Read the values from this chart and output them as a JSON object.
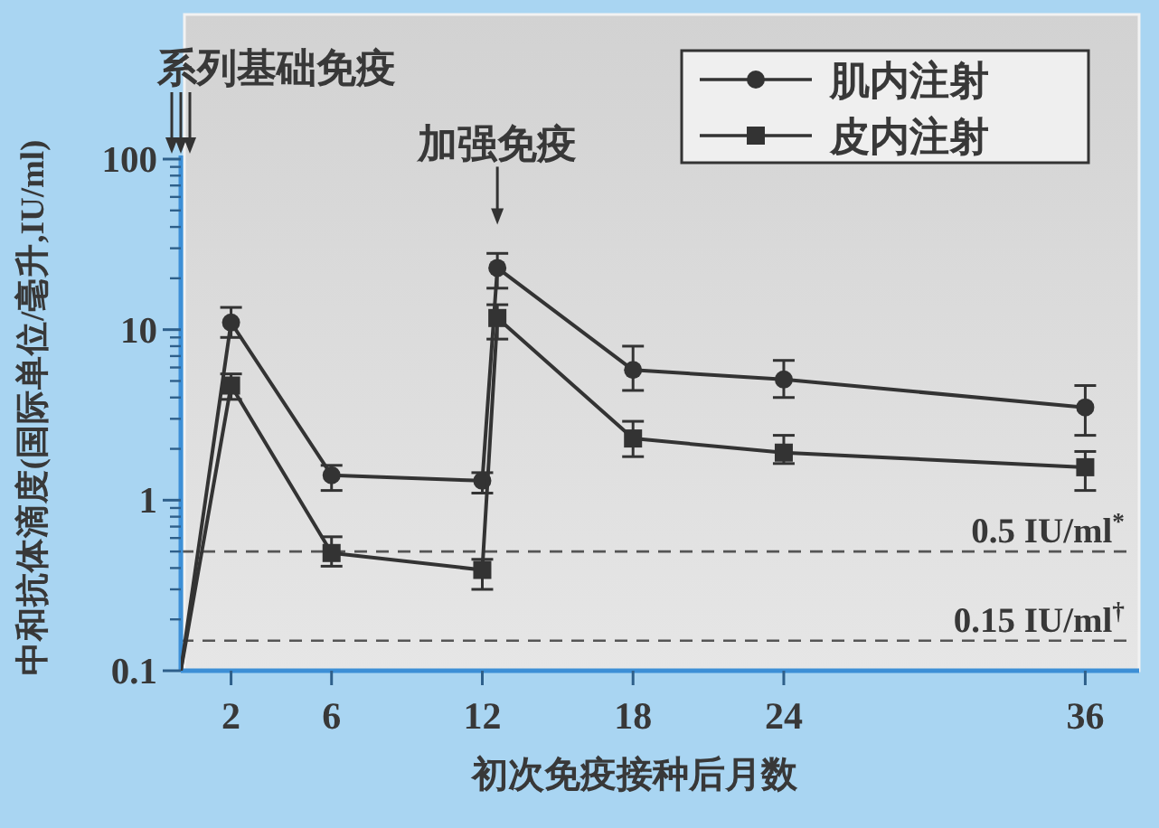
{
  "chart_data": {
    "type": "line",
    "xlabel": "初次免疫接种后月数",
    "ylabel": "中和抗体滴度(国际单位/毫升,IU/ml)",
    "x": [
      0,
      2,
      6,
      12,
      12.6,
      18,
      24,
      36
    ],
    "series": [
      {
        "name": "肌内注射",
        "color": "#333333",
        "marker": "circle",
        "values": [
          0.1,
          11,
          1.4,
          1.3,
          23,
          5.8,
          5.1,
          3.5
        ],
        "errors": [
          null,
          [
            9,
            13.5
          ],
          [
            1.14,
            1.6
          ],
          [
            1.1,
            1.45
          ],
          [
            17.5,
            28
          ],
          [
            4.4,
            8
          ],
          [
            4.0,
            6.6
          ],
          [
            2.4,
            4.7
          ]
        ]
      },
      {
        "name": "皮内注射",
        "color": "#333333",
        "marker": "square",
        "values": [
          0.1,
          4.7,
          0.49,
          0.39,
          11.7,
          2.3,
          1.9,
          1.56
        ],
        "errors": [
          null,
          [
            3.9,
            5.5
          ],
          [
            0.41,
            0.61
          ],
          [
            0.3,
            0.45
          ],
          [
            8.8,
            14
          ],
          [
            1.8,
            2.9
          ],
          [
            1.64,
            2.4
          ],
          [
            1.14,
            1.93
          ]
        ]
      }
    ],
    "xlim": [
      0,
      38
    ],
    "xticks": [
      2,
      6,
      12,
      18,
      24,
      36
    ],
    "ylim": [
      0.1,
      100
    ],
    "yticks": [
      0.1,
      1,
      10,
      100
    ],
    "log": true,
    "ref_lines": [
      {
        "axis": "y",
        "value": 0.5,
        "label": "0.5 IU/ml$^{*}$",
        "line_style": "dashed",
        "color": "#555555"
      },
      {
        "axis": "y",
        "value": 0.15,
        "label": "0.15 IU/ml$^{†}$",
        "line_style": "dashed",
        "color": "#555555"
      }
    ],
    "annotations": [
      "系列基础免疫",
      {
        "text": "加强免疫",
        "x": 12.6,
        "y": 23
      }
    ],
    "legend": "top right",
    "line_style": "solid"
  }
}
